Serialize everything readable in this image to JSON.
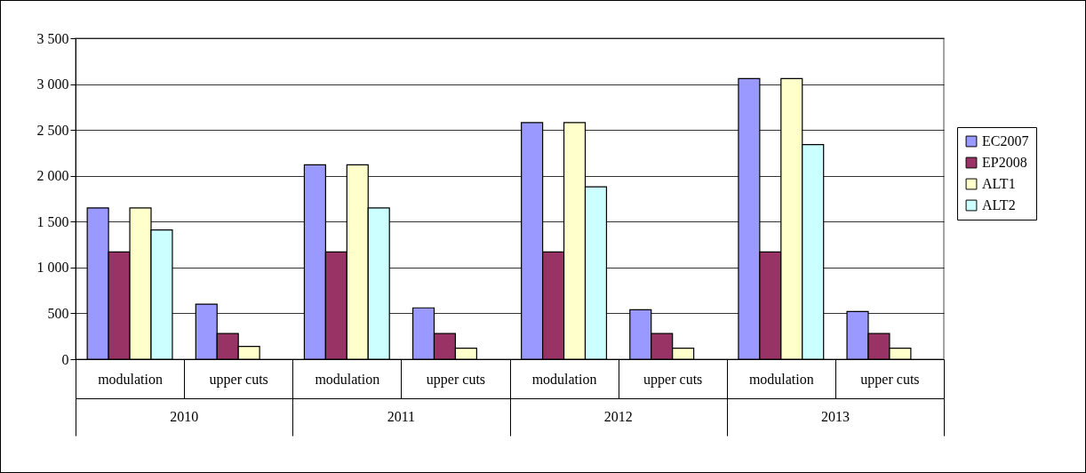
{
  "chart_data": {
    "type": "bar",
    "categories": [
      "modulation",
      "upper cuts",
      "modulation",
      "upper cuts",
      "modulation",
      "upper cuts",
      "modulation",
      "upper cuts"
    ],
    "annotations": [
      "2010",
      "2011",
      "2012",
      "2013"
    ],
    "series": [
      {
        "name": "EC2007",
        "color": "#9999ff",
        "values": [
          1650,
          600,
          2120,
          560,
          2580,
          540,
          3060,
          520
        ]
      },
      {
        "name": "EP2008",
        "color": "#993366",
        "values": [
          1170,
          280,
          1170,
          280,
          1170,
          280,
          1170,
          280
        ]
      },
      {
        "name": "ALT1",
        "color": "#ffffcc",
        "values": [
          1650,
          140,
          2120,
          120,
          2580,
          120,
          3060,
          120
        ]
      },
      {
        "name": "ALT2",
        "color": "#ccffff",
        "values": [
          1410,
          null,
          1650,
          null,
          1880,
          null,
          2340,
          null
        ]
      }
    ],
    "ylim": [
      0,
      3500
    ],
    "yticks": [
      0,
      500,
      {
        "value": 1000,
        "label": "1 000"
      },
      {
        "value": 1500,
        "label": "1 500"
      },
      {
        "value": 2000,
        "label": "2 000"
      },
      {
        "value": 2500,
        "label": "2 500"
      },
      {
        "value": 3000,
        "label": "3 000"
      },
      {
        "value": 3500,
        "label": "3 500"
      }
    ],
    "grid": "y",
    "legend": "right"
  }
}
